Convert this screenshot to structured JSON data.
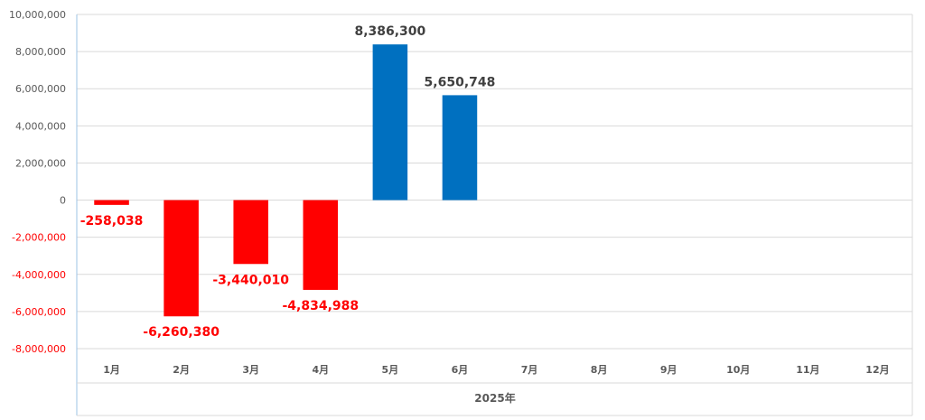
{
  "chart_data": {
    "type": "bar",
    "categories": [
      "1月",
      "2月",
      "3月",
      "4月",
      "5月",
      "6月",
      "7月",
      "8月",
      "9月",
      "10月",
      "11月",
      "12月"
    ],
    "group_label": "2025年",
    "values": [
      -258038,
      -6260380,
      -3440010,
      -4834988,
      8386300,
      5650748,
      null,
      null,
      null,
      null,
      null,
      null
    ],
    "data_labels": [
      "-258,038",
      "-6,260,380",
      "-3,440,010",
      "-4,834,988",
      "8,386,300",
      "5,650,748",
      "",
      "",
      "",
      "",
      "",
      ""
    ],
    "y_ticks": [
      10000000,
      8000000,
      6000000,
      4000000,
      2000000,
      0,
      -2000000,
      -4000000,
      -6000000,
      -8000000
    ],
    "y_tick_labels": [
      "10,000,000",
      "8,000,000",
      "6,000,000",
      "4,000,000",
      "2,000,000",
      "0",
      "-2,000,000",
      "-4,000,000",
      "-6,000,000",
      "-8,000,000"
    ],
    "ylim": [
      -8000000,
      10000000
    ],
    "grid": true,
    "positive_color": "#0070c0",
    "negative_color": "#ff0000",
    "label_positive_color": "#404040",
    "label_negative_color": "#ff0000"
  }
}
